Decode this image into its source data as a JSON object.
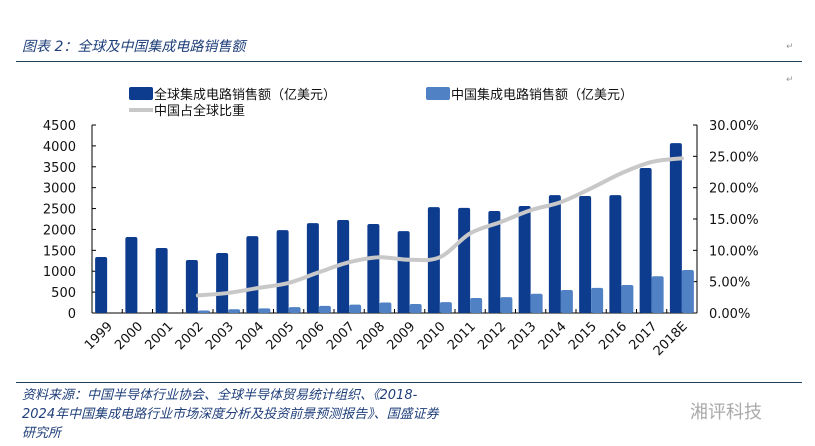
{
  "header": {
    "title": "图表 2：全球及中国集成电路销售额"
  },
  "footer": {
    "source": "资料来源：中国半导体行业协会、全球半导体贸易统计组织、《2018-2024年中国集成电路行业市场深度分析及投资前景预测报告》、国盛证券研究所",
    "watermark": "湘评科技"
  },
  "colors": {
    "global": "#0d3c8f",
    "china": "#4f81c4",
    "ratio": "#c8c8c8",
    "accent": "#1f3f7a"
  },
  "chart_data": {
    "type": "bar",
    "title": "全球及中国集成电路销售额",
    "categories": [
      "1999",
      "2000",
      "2001",
      "2002",
      "2003",
      "2004",
      "2005",
      "2006",
      "2007",
      "2008",
      "2009",
      "2010",
      "2011",
      "2012",
      "2013",
      "2014",
      "2015",
      "2016",
      "2017",
      "2018E"
    ],
    "series": [
      {
        "name": "全球集成电路销售额（亿美元）",
        "type": "bar",
        "axis": "left",
        "values": [
          1340,
          1820,
          1555,
          1270,
          1435,
          1840,
          1985,
          2150,
          2225,
          2130,
          1960,
          2535,
          2515,
          2440,
          2560,
          2820,
          2800,
          2820,
          3470,
          4065
        ]
      },
      {
        "name": "中国集成电路销售额（亿美元）",
        "type": "bar",
        "axis": "left",
        "values": [
          null,
          null,
          null,
          60,
          90,
          110,
          140,
          170,
          200,
          250,
          215,
          260,
          360,
          380,
          460,
          550,
          600,
          670,
          880,
          1030
        ]
      },
      {
        "name": "中国占全球比重",
        "type": "line",
        "axis": "right",
        "values": [
          null,
          null,
          null,
          2.8,
          3.2,
          4.0,
          4.8,
          6.5,
          8.1,
          8.9,
          8.5,
          8.9,
          12.7,
          14.5,
          16.4,
          17.7,
          19.9,
          22.3,
          24.1,
          24.7
        ]
      }
    ],
    "y_left": {
      "range": [
        0,
        4500
      ],
      "ticks": [
        "0",
        "500",
        "1000",
        "1500",
        "2000",
        "2500",
        "3000",
        "3500",
        "4000",
        "4500"
      ]
    },
    "y_right": {
      "range": [
        0,
        30
      ],
      "ticks": [
        "0.00%",
        "5.00%",
        "10.00%",
        "15.00%",
        "20.00%",
        "25.00%",
        "30.00%"
      ]
    },
    "legend": "top",
    "grid": false
  }
}
